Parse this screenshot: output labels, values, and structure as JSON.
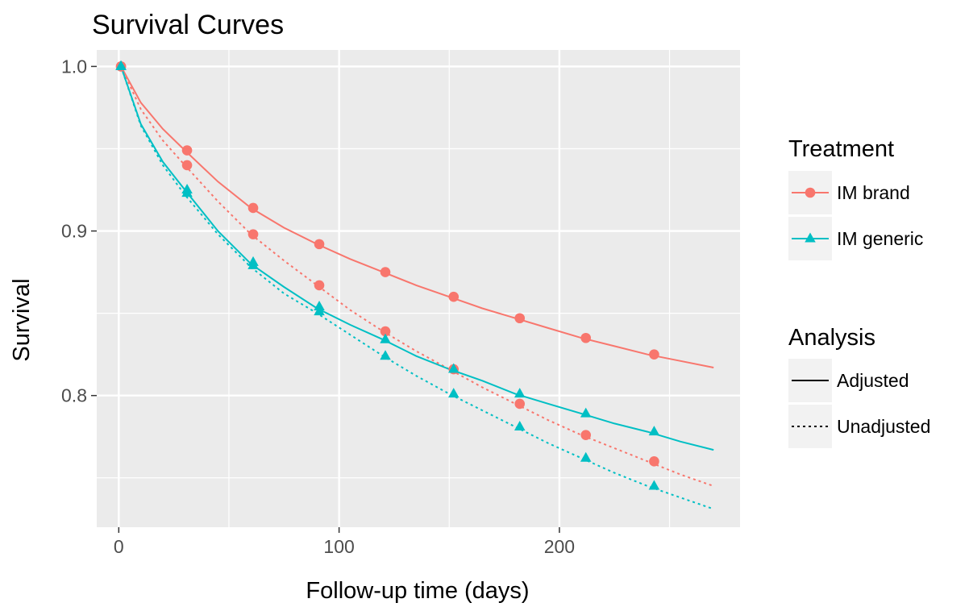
{
  "chart_data": {
    "type": "line",
    "title": "Survival Curves",
    "xlabel": "Follow-up time (days)",
    "ylabel": "Survival",
    "xlim": [
      -10,
      282
    ],
    "ylim": [
      0.72,
      1.01
    ],
    "xticks": [
      0,
      100,
      200
    ],
    "xtick_labels": [
      "0",
      "100",
      "200"
    ],
    "yticks": [
      0.8,
      0.9,
      1.0
    ],
    "ytick_labels": [
      "0.8",
      "0.9",
      "1.0"
    ],
    "grid": true,
    "background": "#ebebeb",
    "legend_position": "right",
    "legends": [
      {
        "title": "Treatment",
        "entries": [
          {
            "label": "IM brand",
            "color": "#f8766d",
            "shape": "circle"
          },
          {
            "label": "IM generic",
            "color": "#00bfc4",
            "shape": "triangle"
          }
        ]
      },
      {
        "title": "Analysis",
        "entries": [
          {
            "label": "Adjusted",
            "linetype": "solid"
          },
          {
            "label": "Unadjusted",
            "linetype": "dotted"
          }
        ]
      }
    ],
    "series": [
      {
        "treatment": "IM brand",
        "analysis": "Adjusted",
        "color": "#f8766d",
        "shape": "circle",
        "linetype": "solid",
        "line": [
          [
            1,
            1.0
          ],
          [
            10,
            0.978
          ],
          [
            20,
            0.962
          ],
          [
            30,
            0.949
          ],
          [
            45,
            0.93
          ],
          [
            60,
            0.914
          ],
          [
            75,
            0.902
          ],
          [
            90,
            0.892
          ],
          [
            105,
            0.883
          ],
          [
            120,
            0.875
          ],
          [
            135,
            0.867
          ],
          [
            150,
            0.86
          ],
          [
            165,
            0.853
          ],
          [
            180,
            0.847
          ],
          [
            195,
            0.841
          ],
          [
            210,
            0.835
          ],
          [
            225,
            0.83
          ],
          [
            240,
            0.825
          ],
          [
            255,
            0.821
          ],
          [
            270,
            0.817
          ]
        ],
        "points": [
          [
            1,
            1.0
          ],
          [
            31,
            0.949
          ],
          [
            61,
            0.914
          ],
          [
            91,
            0.892
          ],
          [
            121,
            0.875
          ],
          [
            152,
            0.86
          ],
          [
            182,
            0.847
          ],
          [
            212,
            0.835
          ],
          [
            243,
            0.825
          ]
        ]
      },
      {
        "treatment": "IM brand",
        "analysis": "Unadjusted",
        "color": "#f8766d",
        "shape": "circle",
        "linetype": "dotted",
        "line": [
          [
            1,
            1.0
          ],
          [
            10,
            0.974
          ],
          [
            20,
            0.955
          ],
          [
            30,
            0.94
          ],
          [
            45,
            0.918
          ],
          [
            60,
            0.898
          ],
          [
            75,
            0.882
          ],
          [
            90,
            0.867
          ],
          [
            105,
            0.852
          ],
          [
            120,
            0.839
          ],
          [
            135,
            0.827
          ],
          [
            150,
            0.816
          ],
          [
            165,
            0.805
          ],
          [
            180,
            0.795
          ],
          [
            195,
            0.785
          ],
          [
            210,
            0.776
          ],
          [
            225,
            0.768
          ],
          [
            240,
            0.76
          ],
          [
            255,
            0.752
          ],
          [
            270,
            0.745
          ]
        ],
        "points": [
          [
            1,
            1.0
          ],
          [
            31,
            0.94
          ],
          [
            61,
            0.898
          ],
          [
            91,
            0.867
          ],
          [
            121,
            0.839
          ],
          [
            152,
            0.816
          ],
          [
            182,
            0.795
          ],
          [
            212,
            0.776
          ],
          [
            243,
            0.76
          ]
        ]
      },
      {
        "treatment": "IM generic",
        "analysis": "Adjusted",
        "color": "#00bfc4",
        "shape": "triangle",
        "linetype": "solid",
        "line": [
          [
            1,
            1.0
          ],
          [
            10,
            0.965
          ],
          [
            20,
            0.942
          ],
          [
            30,
            0.925
          ],
          [
            45,
            0.9
          ],
          [
            60,
            0.88
          ],
          [
            75,
            0.866
          ],
          [
            90,
            0.853
          ],
          [
            105,
            0.843
          ],
          [
            120,
            0.834
          ],
          [
            135,
            0.824
          ],
          [
            150,
            0.816
          ],
          [
            165,
            0.809
          ],
          [
            180,
            0.801
          ],
          [
            195,
            0.795
          ],
          [
            210,
            0.789
          ],
          [
            225,
            0.783
          ],
          [
            240,
            0.778
          ],
          [
            255,
            0.772
          ],
          [
            270,
            0.767
          ]
        ],
        "points": [
          [
            1,
            1.0
          ],
          [
            31,
            0.925
          ],
          [
            61,
            0.881
          ],
          [
            91,
            0.854
          ],
          [
            121,
            0.834
          ],
          [
            152,
            0.816
          ],
          [
            182,
            0.801
          ],
          [
            212,
            0.789
          ],
          [
            243,
            0.778
          ]
        ]
      },
      {
        "treatment": "IM generic",
        "analysis": "Unadjusted",
        "color": "#00bfc4",
        "shape": "triangle",
        "linetype": "dotted",
        "line": [
          [
            1,
            1.0
          ],
          [
            10,
            0.964
          ],
          [
            20,
            0.94
          ],
          [
            30,
            0.922
          ],
          [
            45,
            0.898
          ],
          [
            60,
            0.878
          ],
          [
            75,
            0.862
          ],
          [
            90,
            0.85
          ],
          [
            105,
            0.837
          ],
          [
            120,
            0.824
          ],
          [
            135,
            0.812
          ],
          [
            150,
            0.801
          ],
          [
            165,
            0.791
          ],
          [
            180,
            0.781
          ],
          [
            195,
            0.771
          ],
          [
            210,
            0.762
          ],
          [
            225,
            0.753
          ],
          [
            240,
            0.745
          ],
          [
            255,
            0.738
          ],
          [
            270,
            0.731
          ]
        ],
        "points": [
          [
            1,
            1.0
          ],
          [
            31,
            0.923
          ],
          [
            61,
            0.879
          ],
          [
            91,
            0.851
          ],
          [
            121,
            0.824
          ],
          [
            152,
            0.801
          ],
          [
            182,
            0.781
          ],
          [
            212,
            0.762
          ],
          [
            243,
            0.745
          ]
        ]
      }
    ]
  }
}
